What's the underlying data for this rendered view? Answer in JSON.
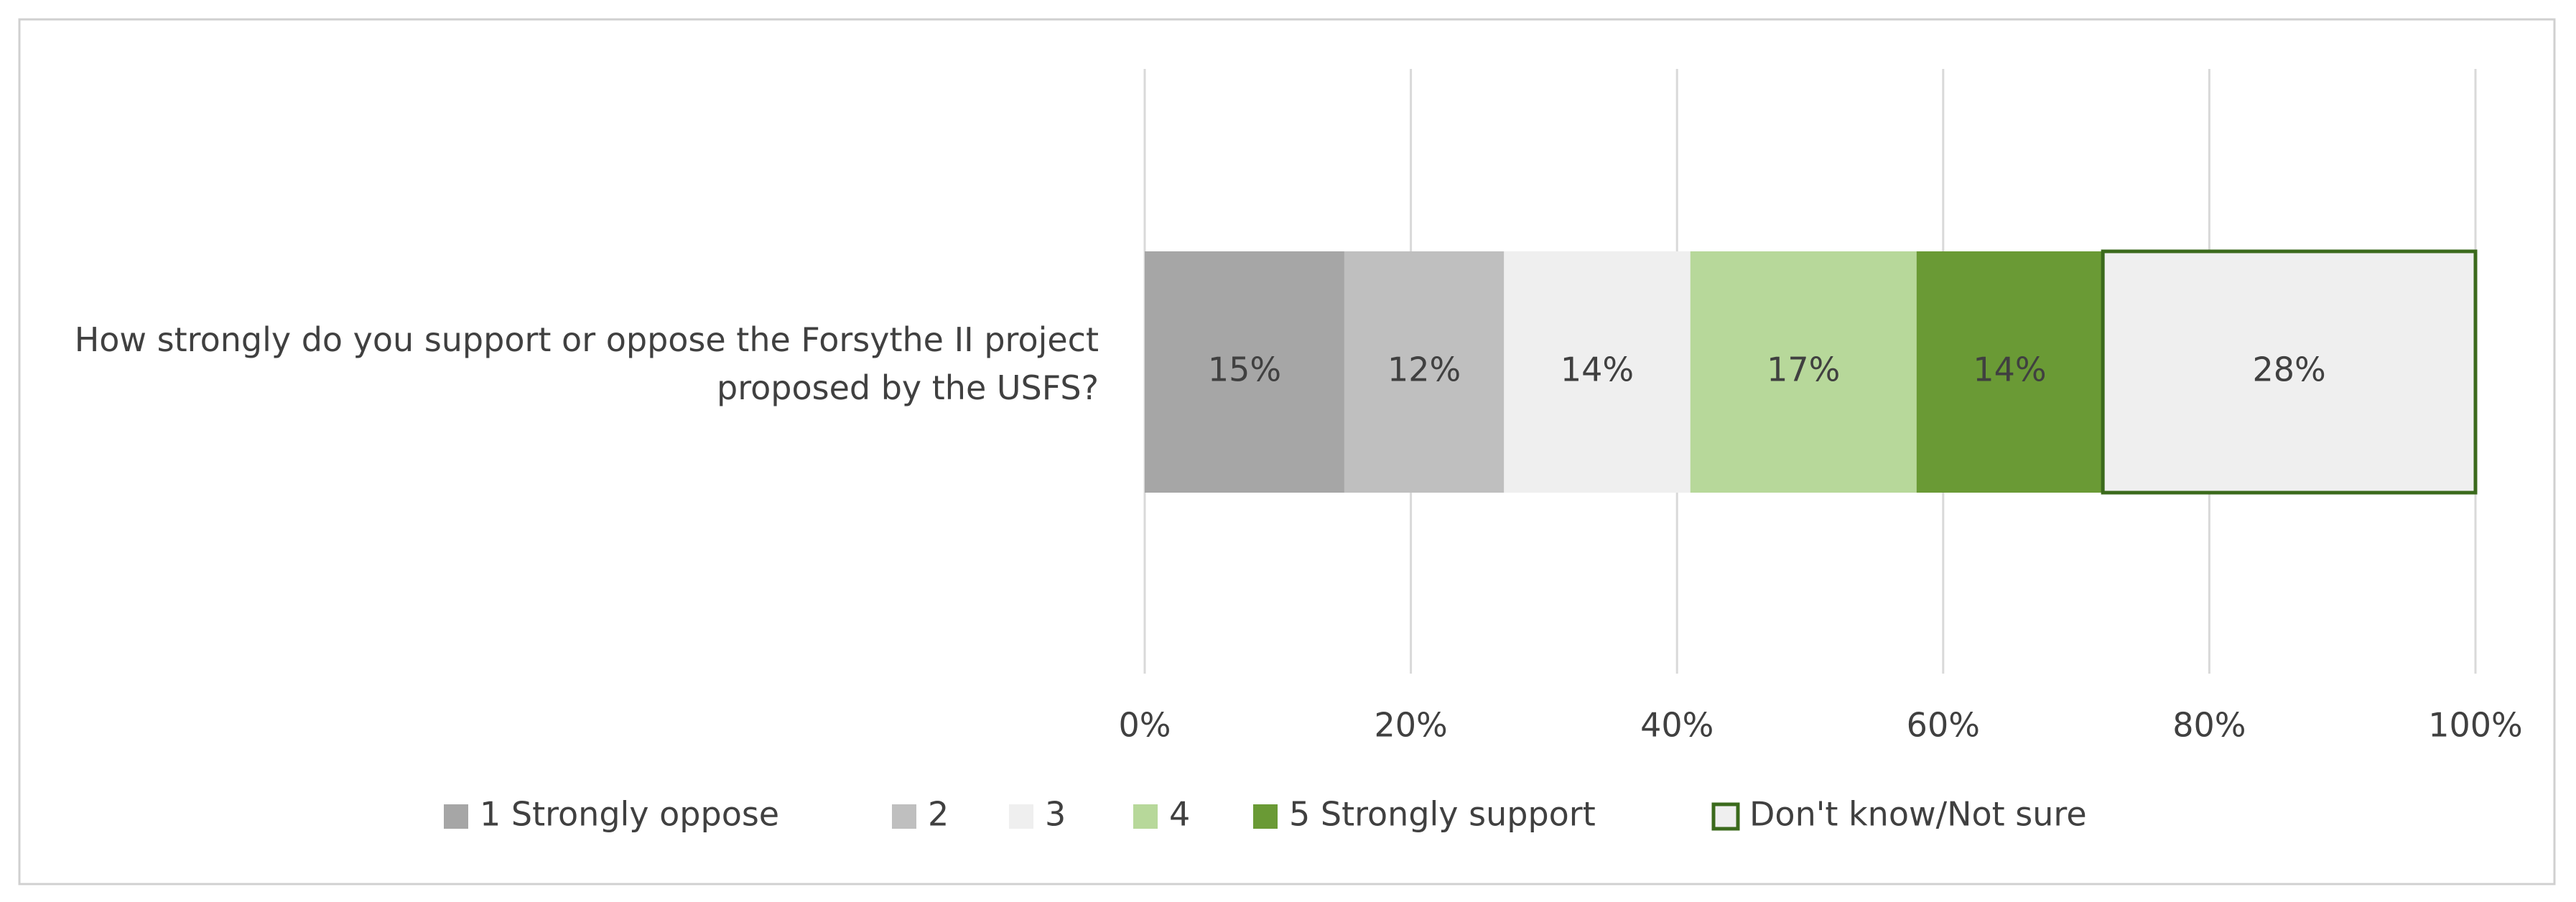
{
  "chart_data": {
    "type": "stacked-barh",
    "categories": [
      "How strongly do you support or oppose the Forsythe II project proposed by the USFS?"
    ],
    "series": [
      {
        "name": "1 Strongly oppose",
        "color": "#a6a6a6",
        "values": [
          15
        ],
        "value_labels": [
          "15%"
        ]
      },
      {
        "name": "2",
        "color": "#bfbfbf",
        "values": [
          12
        ],
        "value_labels": [
          "12%"
        ]
      },
      {
        "name": "3",
        "color": "#efefef",
        "values": [
          14
        ],
        "value_labels": [
          "14%"
        ]
      },
      {
        "name": "4",
        "color": "#b7d89a",
        "values": [
          17
        ],
        "value_labels": [
          "17%"
        ]
      },
      {
        "name": "5 Strongly support",
        "color": "#6a9a35",
        "values": [
          14
        ],
        "value_labels": [
          "14%"
        ]
      },
      {
        "name": "Don't know/Not sure",
        "color": "#efefef",
        "edgecolor": "#3b6a1c",
        "values": [
          28
        ],
        "value_labels": [
          "28%"
        ]
      }
    ],
    "xlim": [
      0,
      100
    ],
    "xticks": [
      {
        "value": 0,
        "label": "0%"
      },
      {
        "value": 20,
        "label": "20%"
      },
      {
        "value": 40,
        "label": "40%"
      },
      {
        "value": 60,
        "label": "60%"
      },
      {
        "value": 80,
        "label": "80%"
      },
      {
        "value": 100,
        "label": "100%"
      }
    ],
    "grid": true,
    "legend": "bottom"
  }
}
